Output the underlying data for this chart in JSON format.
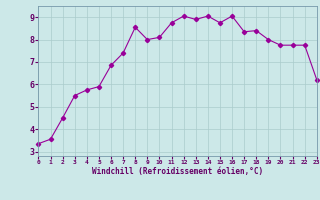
{
  "x": [
    0,
    1,
    2,
    3,
    4,
    5,
    6,
    7,
    8,
    9,
    10,
    11,
    12,
    13,
    14,
    15,
    16,
    17,
    18,
    19,
    20,
    21,
    22,
    23
  ],
  "y": [
    3.35,
    3.55,
    4.5,
    5.5,
    5.75,
    5.9,
    6.85,
    7.4,
    8.55,
    8.0,
    8.1,
    8.75,
    9.05,
    8.9,
    9.05,
    8.75,
    9.05,
    8.35,
    8.4,
    8.0,
    7.75,
    7.75,
    7.75,
    6.2
  ],
  "line_color": "#990099",
  "marker": "D",
  "marker_size": 2.2,
  "bg_color": "#cce8e8",
  "grid_color": "#aacccc",
  "xlabel": "Windchill (Refroidissement éolien,°C)",
  "xlabel_color": "#660066",
  "tick_color": "#660066",
  "ylim": [
    2.8,
    9.5
  ],
  "xlim": [
    0,
    23
  ],
  "yticks": [
    3,
    4,
    5,
    6,
    7,
    8,
    9
  ],
  "xticks": [
    0,
    1,
    2,
    3,
    4,
    5,
    6,
    7,
    8,
    9,
    10,
    11,
    12,
    13,
    14,
    15,
    16,
    17,
    18,
    19,
    20,
    21,
    22,
    23
  ]
}
